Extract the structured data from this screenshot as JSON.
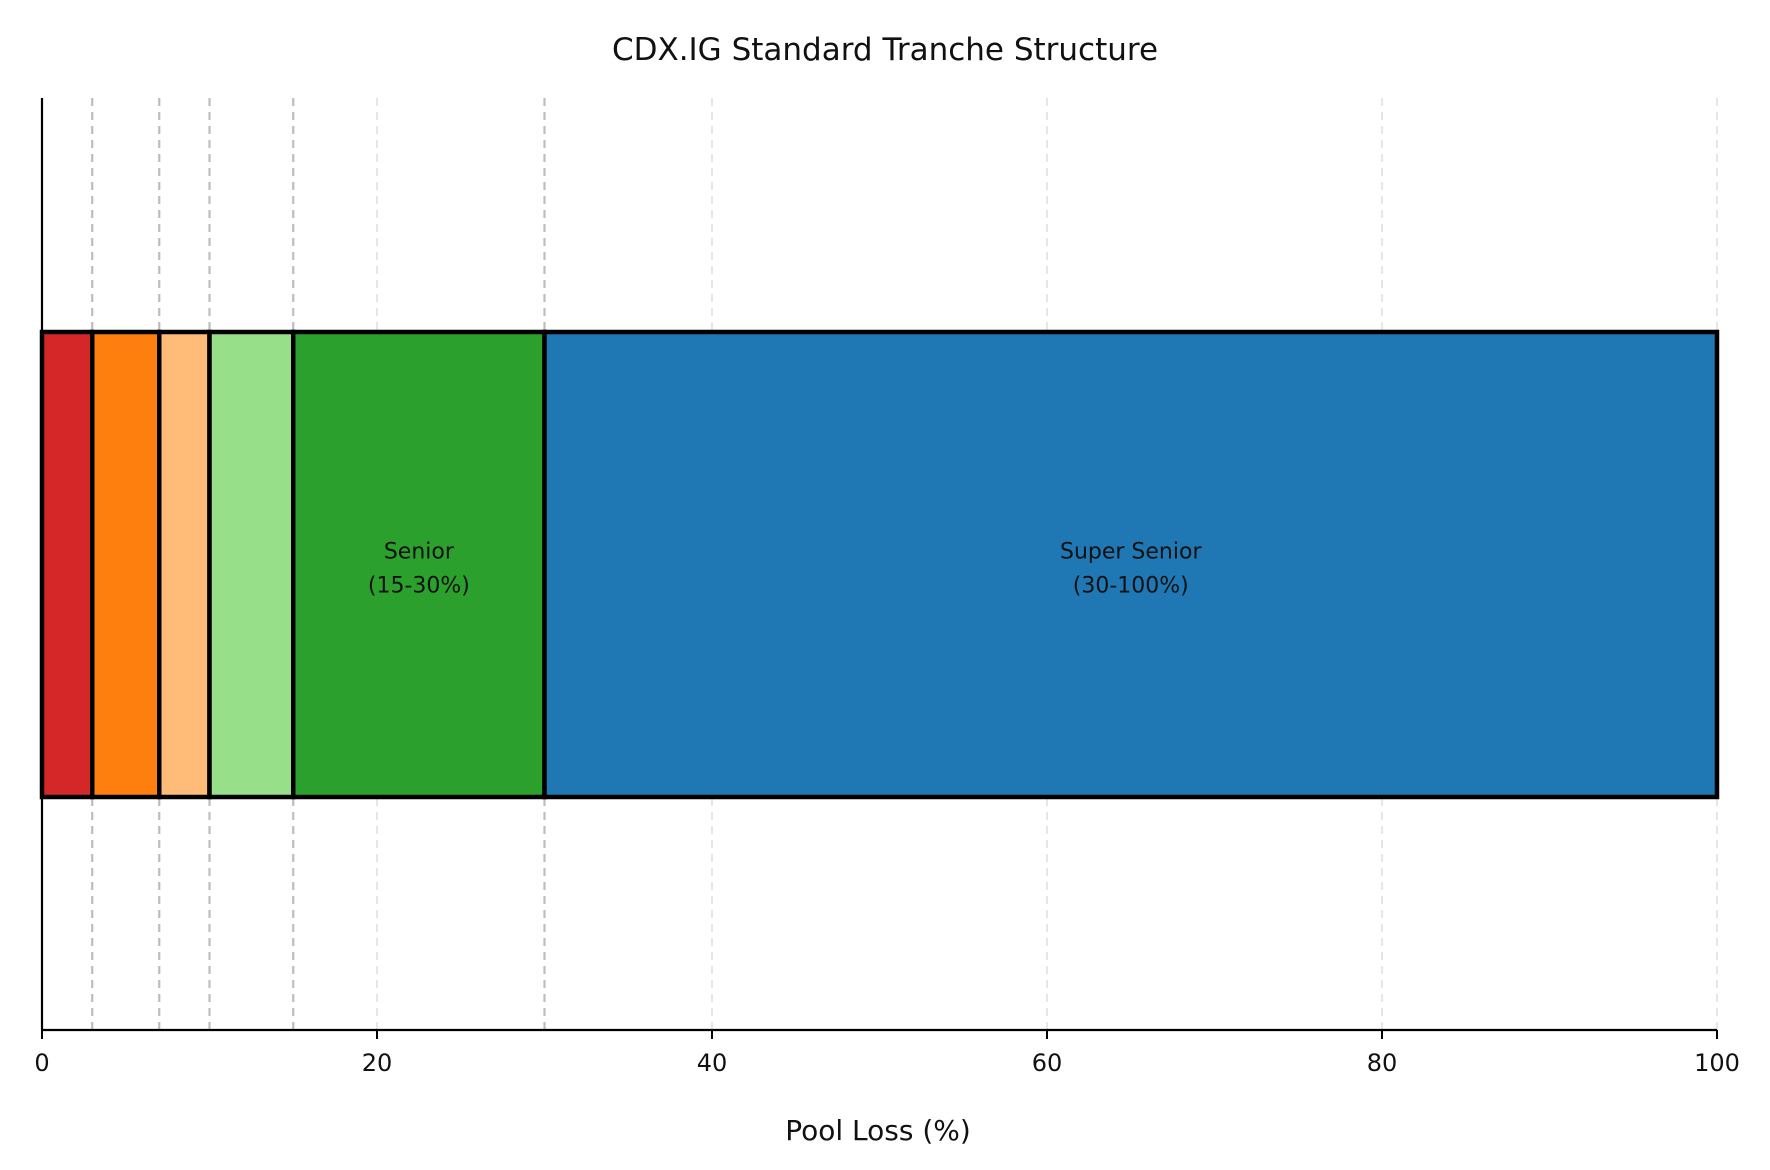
{
  "chart_data": {
    "type": "bar",
    "orientation": "horizontal-stacked",
    "title": "CDX.IG Standard Tranche Structure",
    "xlabel": "Pool Loss (%)",
    "ylabel": "",
    "xlim": [
      0,
      100
    ],
    "x_ticks": [
      "0",
      "20",
      "40",
      "60",
      "80",
      "100"
    ],
    "grid": "vertical dashed, light gray",
    "attachment_lines": [
      3,
      7,
      10,
      15,
      30
    ],
    "segments": [
      {
        "start": 0,
        "end": 3,
        "color": "#d62728",
        "label": ""
      },
      {
        "start": 3,
        "end": 7,
        "color": "#ff7f0e",
        "label": ""
      },
      {
        "start": 7,
        "end": 10,
        "color": "#ffbb78",
        "label": ""
      },
      {
        "start": 10,
        "end": 15,
        "color": "#98df8a",
        "label": ""
      },
      {
        "start": 15,
        "end": 30,
        "color": "#2ca02c",
        "label": "Senior",
        "range_label": "(15-30%)"
      },
      {
        "start": 30,
        "end": 100,
        "color": "#1f77b4",
        "label": "Super Senior",
        "range_label": "(30-100%)"
      }
    ]
  }
}
